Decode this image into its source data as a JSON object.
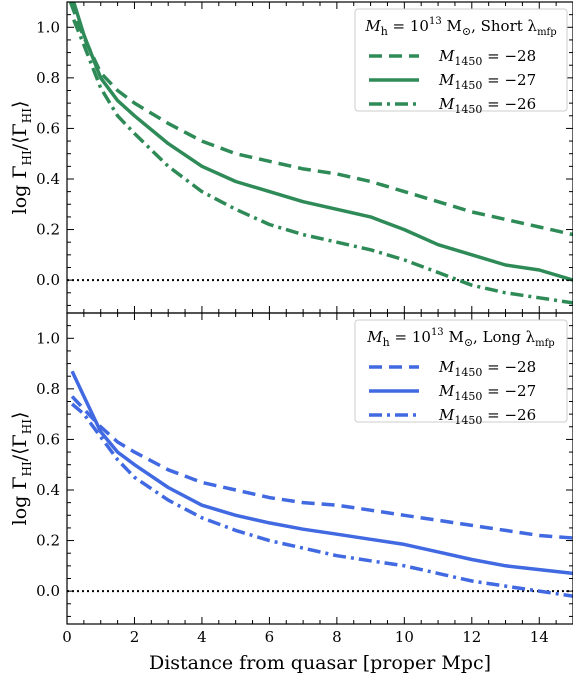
{
  "chart_data": [
    {
      "type": "line",
      "xlabel": "Distance from quasar [proper Mpc]",
      "ylabel": "log Γ_HI/⟨Γ_HI⟩",
      "xlim": [
        0,
        15
      ],
      "ylim": [
        -0.13,
        1.1
      ],
      "xticks": [
        0,
        2,
        4,
        6,
        8,
        10,
        12,
        14
      ],
      "yticks": [
        0.0,
        0.2,
        0.4,
        0.6,
        0.8,
        1.0
      ],
      "reference_line": {
        "y": 0.0,
        "style": "dotted",
        "color": "#000000"
      },
      "legend": {
        "title": "M_h = 10^13 M_⊙, Short λ_mfp",
        "title_parts": {
          "pre": "M",
          "pre_sub": "h",
          "eq": " = 10",
          "sup": "13",
          "unit": " M",
          "unit_sub": "⊙",
          "text": ", Short λ",
          "text_sub": "mfp"
        },
        "placement": "top-right"
      },
      "color": "#2e8b57",
      "series": [
        {
          "name": "M_1450 = −28",
          "label_value": "= −28",
          "dash": "dashed",
          "x": [
            0.1,
            0.5,
            1,
            1.5,
            2,
            3,
            4,
            5,
            6,
            7,
            8,
            9,
            10,
            11,
            12,
            13,
            14,
            15
          ],
          "y": [
            1.1,
            0.96,
            0.82,
            0.75,
            0.7,
            0.62,
            0.55,
            0.5,
            0.47,
            0.44,
            0.42,
            0.39,
            0.35,
            0.31,
            0.27,
            0.24,
            0.21,
            0.18
          ]
        },
        {
          "name": "M_1450 = −27",
          "label_value": "= −27",
          "dash": "solid",
          "x": [
            0.2,
            0.5,
            1,
            1.5,
            2,
            3,
            4,
            5,
            6,
            7,
            8,
            9,
            10,
            11,
            12,
            13,
            14,
            15
          ],
          "y": [
            1.1,
            0.97,
            0.8,
            0.71,
            0.65,
            0.54,
            0.45,
            0.39,
            0.35,
            0.31,
            0.28,
            0.25,
            0.2,
            0.14,
            0.1,
            0.06,
            0.04,
            0.0
          ]
        },
        {
          "name": "M_1450 = −26",
          "label_value": "= −26",
          "dash": "dashdot",
          "x": [
            0.2,
            0.5,
            1,
            1.5,
            2,
            3,
            4,
            5,
            6,
            7,
            8,
            9,
            10,
            11,
            12,
            13,
            14,
            15
          ],
          "y": [
            1.03,
            0.93,
            0.76,
            0.65,
            0.58,
            0.45,
            0.35,
            0.28,
            0.22,
            0.18,
            0.15,
            0.12,
            0.08,
            0.03,
            -0.02,
            -0.05,
            -0.07,
            -0.09
          ]
        }
      ]
    },
    {
      "type": "line",
      "xlabel": "Distance from quasar [proper Mpc]",
      "ylabel": "log Γ_HI/⟨Γ_HI⟩",
      "xlim": [
        0,
        15
      ],
      "ylim": [
        -0.13,
        1.1
      ],
      "xticks": [
        0,
        2,
        4,
        6,
        8,
        10,
        12,
        14
      ],
      "yticks": [
        0.0,
        0.2,
        0.4,
        0.6,
        0.8,
        1.0
      ],
      "reference_line": {
        "y": 0.0,
        "style": "dotted",
        "color": "#000000"
      },
      "legend": {
        "title": "M_h = 10^13 M_⊙, Long λ_mfp",
        "title_parts": {
          "pre": "M",
          "pre_sub": "h",
          "eq": " = 10",
          "sup": "13",
          "unit": " M",
          "unit_sub": "⊙",
          "text": ", Long λ",
          "text_sub": "mfp"
        },
        "placement": "top-right"
      },
      "color": "#4169e1",
      "series": [
        {
          "name": "M_1450 = −28",
          "label_value": "= −28",
          "dash": "dashed",
          "x": [
            0.15,
            0.5,
            1,
            1.5,
            2,
            3,
            4,
            5,
            6,
            7,
            8,
            9,
            10,
            11,
            12,
            13,
            14,
            15
          ],
          "y": [
            0.77,
            0.72,
            0.65,
            0.59,
            0.55,
            0.48,
            0.43,
            0.4,
            0.37,
            0.35,
            0.34,
            0.32,
            0.3,
            0.28,
            0.26,
            0.24,
            0.22,
            0.21
          ]
        },
        {
          "name": "M_1450 = −27",
          "label_value": "= −27",
          "dash": "solid",
          "x": [
            0.15,
            0.5,
            1,
            1.5,
            2,
            3,
            4,
            5,
            6,
            7,
            8,
            9,
            10,
            11,
            12,
            13,
            14,
            15
          ],
          "y": [
            0.87,
            0.77,
            0.63,
            0.55,
            0.5,
            0.41,
            0.34,
            0.3,
            0.27,
            0.245,
            0.225,
            0.205,
            0.185,
            0.155,
            0.125,
            0.1,
            0.085,
            0.07
          ]
        },
        {
          "name": "M_1450 = −26",
          "label_value": "= −26",
          "dash": "dashdot",
          "x": [
            0.15,
            0.5,
            1,
            1.5,
            2,
            3,
            4,
            5,
            6,
            7,
            8,
            9,
            10,
            11,
            12,
            13,
            14,
            15
          ],
          "y": [
            0.74,
            0.7,
            0.61,
            0.52,
            0.45,
            0.36,
            0.29,
            0.24,
            0.2,
            0.17,
            0.14,
            0.12,
            0.1,
            0.07,
            0.04,
            0.02,
            0.0,
            -0.02
          ]
        }
      ]
    }
  ]
}
